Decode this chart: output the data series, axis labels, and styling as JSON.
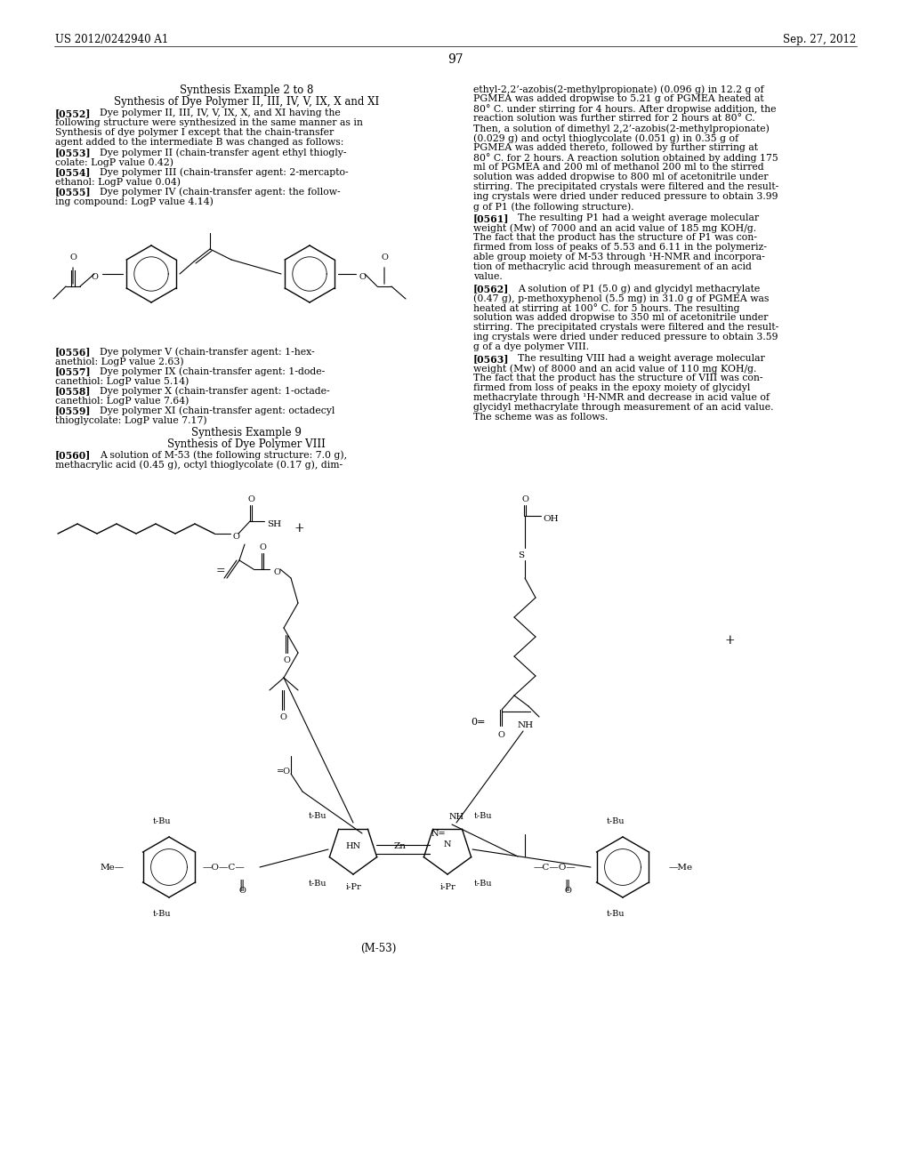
{
  "background_color": "#ffffff",
  "page_number": "97",
  "patent_left": "US 2012/0242940 A1",
  "patent_right": "Sep. 27, 2012"
}
